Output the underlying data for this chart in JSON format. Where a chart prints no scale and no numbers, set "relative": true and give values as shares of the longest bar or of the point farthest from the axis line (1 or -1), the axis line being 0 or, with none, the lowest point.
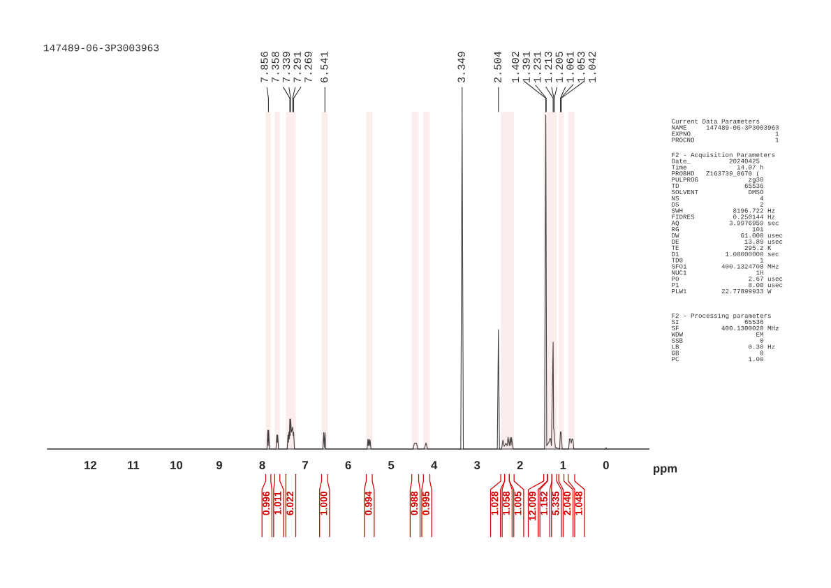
{
  "chart_data": {
    "type": "line",
    "title": "147489-06-3P3003963",
    "xlabel": "ppm",
    "relative": true,
    "color": "#404040",
    "xlim": [
      13,
      -1
    ],
    "xticks": [
      12,
      11,
      10,
      9,
      8,
      7,
      6,
      5,
      4,
      3,
      2,
      1,
      0
    ],
    "grid": false,
    "legend": false,
    "x": [
      13.0,
      7.89,
      7.87,
      7.86,
      7.85,
      7.83,
      7.68,
      7.66,
      7.65,
      7.64,
      7.62,
      7.42,
      7.4,
      7.39,
      7.38,
      7.37,
      7.358,
      7.35,
      7.339,
      7.32,
      7.3,
      7.291,
      7.28,
      7.269,
      7.25,
      6.59,
      6.57,
      6.555,
      6.541,
      6.52,
      5.56,
      5.54,
      5.53,
      5.515,
      5.5,
      5.49,
      5.47,
      4.49,
      4.46,
      4.41,
      4.38,
      4.23,
      4.19,
      4.15,
      3.38,
      3.349,
      3.32,
      2.53,
      2.504,
      2.48,
      2.43,
      2.4,
      2.37,
      2.33,
      2.3,
      2.28,
      2.25,
      2.23,
      2.21,
      2.2,
      2.18,
      2.16,
      1.43,
      1.402,
      1.38,
      1.33,
      1.31,
      1.29,
      1.27,
      1.231,
      1.22,
      1.213,
      1.205,
      1.18,
      1.08,
      1.061,
      1.053,
      1.042,
      1.02,
      0.87,
      0.85,
      0.83,
      0.81,
      0.79,
      0.77,
      0.75,
      0.01,
      0.0,
      -0.01,
      -1.0
    ],
    "values": [
      0,
      0,
      0.056,
      0.01,
      0.056,
      0,
      0,
      0.042,
      0.02,
      0.042,
      0,
      0,
      0.042,
      0.02,
      0.05,
      0.03,
      0.089,
      0.04,
      0.089,
      0.05,
      0.06,
      0.065,
      0.04,
      0.05,
      0,
      0,
      0.049,
      0.005,
      0.049,
      0,
      0,
      0.029,
      0.01,
      0.029,
      0.01,
      0.027,
      0,
      0,
      0.017,
      0.017,
      0,
      0,
      0.018,
      0,
      0,
      1.0,
      0,
      0,
      0.354,
      0,
      0,
      0.027,
      0.008,
      0.017,
      0.01,
      0.035,
      0.01,
      0.034,
      0.01,
      0.034,
      0.017,
      0,
      0,
      0.99,
      0.01,
      0.02,
      0.031,
      0.031,
      0.01,
      0.317,
      0.06,
      0.06,
      0.04,
      0.005,
      0,
      0.05,
      0.052,
      0.045,
      0,
      0,
      0.03,
      0.03,
      0.018,
      0.03,
      0.028,
      0,
      0,
      0.004,
      0,
      0
    ],
    "annotations": [
      {
        "text": "7.856",
        "x": 7.856,
        "y": 1.0
      },
      {
        "text": "7.358",
        "x": 7.358,
        "y": 1.0
      },
      {
        "text": "7.339",
        "x": 7.339,
        "y": 1.0
      },
      {
        "text": "7.291",
        "x": 7.291,
        "y": 1.0
      },
      {
        "text": "7.269",
        "x": 7.269,
        "y": 1.0
      },
      {
        "text": "6.541",
        "x": 6.541,
        "y": 1.0
      },
      {
        "text": "3.349",
        "x": 3.349,
        "y": 1.0
      },
      {
        "text": "2.504",
        "x": 2.504,
        "y": 1.0
      },
      {
        "text": "1.402",
        "x": 1.402,
        "y": 1.0
      },
      {
        "text": "1.391",
        "x": 1.391,
        "y": 1.0
      },
      {
        "text": "1.231",
        "x": 1.231,
        "y": 1.0
      },
      {
        "text": "1.213",
        "x": 1.213,
        "y": 1.0
      },
      {
        "text": "1.205",
        "x": 1.205,
        "y": 1.0
      },
      {
        "text": "1.061",
        "x": 1.061,
        "y": 1.0
      },
      {
        "text": "1.053",
        "x": 1.053,
        "y": 1.0
      },
      {
        "text": "1.042",
        "x": 1.042,
        "y": 1.0
      },
      "Current Data Parameters\nNAME     147489-06-3P3003963\nEXPNO                      1\nPROCNO                     1",
      "F2 - Acquisition Parameters\nDate_          20240425\nTime             14.07 h\nPROBHD   Z163739_0670 (\nPULPROG             zg30\nTD                 65536\nSOLVENT             DMSO\nNS                     4\nDS                     2\nSWH             8196.722 Hz\nFIDRES          0.250144 Hz\nAQ             3.9976959 sec\nRG                   101\nDW                61.000 usec\nDE                 13.89 usec\nTE                 295.2 K\nD1            1.00000000 sec\nTD0                    1\nSFO1         400.1324708 MHz\nNUC1                  1H\nP0                  2.67 usec\nP1                  8.00 usec\nPLW1         22.77899933 W",
      "F2 - Processing parameters\nSI                 65536\nSF           400.1300020 MHz\nWDW                   EM\nSSB                    0\nLB                  0.30 Hz\nGB                     0\nPC                  1.00"
    ],
    "bands": [
      {
        "axis": "x",
        "from": 7.92,
        "to": 7.8,
        "label": "0.996",
        "color": "#d40000"
      },
      {
        "axis": "x",
        "from": 7.71,
        "to": 7.59,
        "label": "1.011",
        "color": "#d40000"
      },
      {
        "axis": "x",
        "from": 7.45,
        "to": 7.22,
        "label": "6.022",
        "color": "#d40000"
      },
      {
        "axis": "x",
        "from": 6.62,
        "to": 6.48,
        "label": "1.000",
        "color": "#d40000"
      },
      {
        "axis": "x",
        "from": 5.58,
        "to": 5.44,
        "label": "0.994",
        "color": "#d40000"
      },
      {
        "axis": "x",
        "from": 4.52,
        "to": 4.36,
        "label": "0.988",
        "color": "#d40000"
      },
      {
        "axis": "x",
        "from": 4.25,
        "to": 4.1,
        "label": "0.995",
        "color": "#d40000"
      },
      {
        "axis": "x",
        "from": 2.45,
        "to": 2.36,
        "label": "1.028",
        "color": "#d40000"
      },
      {
        "axis": "x",
        "from": 2.36,
        "to": 2.25,
        "label": "1.058",
        "color": "#d40000"
      },
      {
        "axis": "x",
        "from": 2.25,
        "to": 2.14,
        "label": "1.005",
        "color": "#d40000"
      },
      {
        "axis": "x",
        "from": 1.45,
        "to": 1.37,
        "label": "12.009",
        "color": "#d40000"
      },
      {
        "axis": "x",
        "from": 1.36,
        "to": 1.26,
        "label": "1.152",
        "color": "#d40000"
      },
      {
        "axis": "x",
        "from": 1.26,
        "to": 1.15,
        "label": "5.335",
        "color": "#d40000"
      },
      {
        "axis": "x",
        "from": 1.1,
        "to": 0.98,
        "label": "2.040",
        "color": "#d40000"
      },
      {
        "axis": "x",
        "from": 0.88,
        "to": 0.73,
        "label": "1.048",
        "color": "#d40000"
      }
    ]
  }
}
